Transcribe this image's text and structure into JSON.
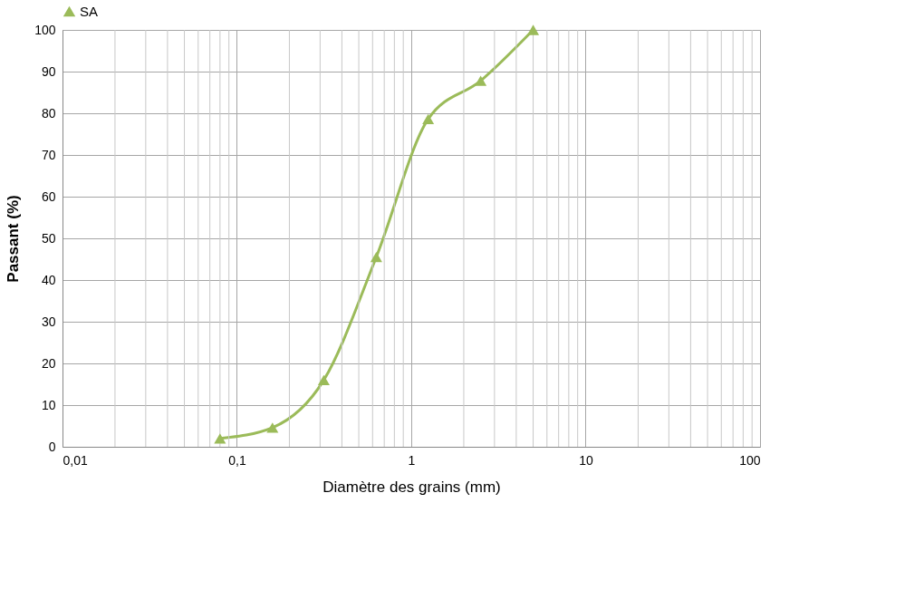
{
  "chart_data": {
    "type": "line",
    "xlabel": "Diamètre des grains (mm)",
    "ylabel": "Passant  (%)",
    "x": [
      0.08,
      0.16,
      0.315,
      0.63,
      1.25,
      2.5,
      5
    ],
    "series": [
      {
        "name": "SA",
        "color": "#9bbb59",
        "values": [
          2,
          4.6,
          16,
          45.5,
          78.6,
          87.8,
          100
        ]
      }
    ],
    "log": "x",
    "xlim": [
      0.01,
      100
    ],
    "xticks": [
      {
        "value": 0.01,
        "label": "0,01"
      },
      {
        "value": 0.1,
        "label": "0,1"
      },
      1,
      10,
      100
    ],
    "ylim": [
      0,
      100
    ],
    "yticks": [
      0,
      10,
      20,
      30,
      40,
      50,
      60,
      70,
      80,
      90,
      100
    ],
    "grid": true,
    "legend": "top",
    "marker": "triangle",
    "line_style": "solid"
  }
}
